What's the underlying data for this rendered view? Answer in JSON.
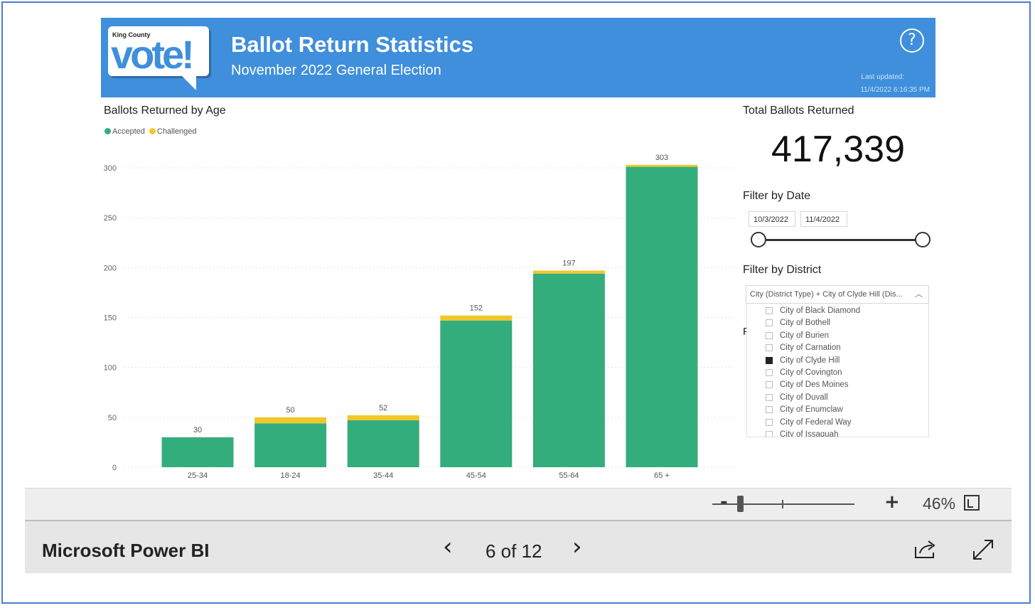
{
  "header": {
    "logo_county": "King County",
    "logo_word": "vote!",
    "title": "Ballot Return Statistics",
    "subtitle": "November 2022 General Election",
    "last_updated_label": "Last updated:",
    "last_updated_value": "11/4/2022 6:16:35 PM",
    "help_icon": "question-circle-icon"
  },
  "chart_data": {
    "type": "bar",
    "stacked": true,
    "title": "Ballots Returned by Age",
    "categories": [
      "25-34",
      "18-24",
      "35-44",
      "45-54",
      "55-64",
      "65 +"
    ],
    "series": [
      {
        "name": "Accepted",
        "color": "#34ad7d",
        "values": [
          30,
          44,
          47,
          147,
          194,
          301
        ]
      },
      {
        "name": "Challenged",
        "color": "#f2c72a",
        "values": [
          0,
          6,
          5,
          5,
          3,
          2
        ]
      }
    ],
    "totals": [
      "30",
      "50",
      "52",
      "152",
      "197",
      "303"
    ],
    "yticks": [
      0,
      50,
      100,
      150,
      200,
      250,
      300
    ],
    "ylim": [
      0,
      320
    ],
    "grid": true,
    "legend_position": "top-left"
  },
  "kpi": {
    "title": "Total Ballots Returned",
    "value": "417,339"
  },
  "date_filter": {
    "title": "Filter by Date",
    "start": "10/3/2022",
    "end": "11/4/2022"
  },
  "district_filter": {
    "title": "Filter by District",
    "dropdown_value": "City (District Type) + City of Clyde Hill (Dis...",
    "items": [
      {
        "label": "City of Black Diamond",
        "checked": false
      },
      {
        "label": "City of Bothell",
        "checked": false
      },
      {
        "label": "City of Burien",
        "checked": false
      },
      {
        "label": "City of Carnation",
        "checked": false
      },
      {
        "label": "City of Clyde Hill",
        "checked": true
      },
      {
        "label": "City of Covington",
        "checked": false
      },
      {
        "label": "City of Des Moines",
        "checked": false
      },
      {
        "label": "City of Duvall",
        "checked": false
      },
      {
        "label": "City of Enumclaw",
        "checked": false
      },
      {
        "label": "City of Federal Way",
        "checked": false
      },
      {
        "label": "City of Issaquah",
        "checked": false
      }
    ],
    "hidden_label": "F"
  },
  "zoom": {
    "minus": "-",
    "plus": "+",
    "value": "46%",
    "level": 0.46
  },
  "footer": {
    "brand": "Microsoft Power BI",
    "page_indicator": "6 of 12",
    "prev_icon": "chevron-left-icon",
    "next_icon": "chevron-right-icon",
    "share_icon": "share-icon",
    "expand_icon": "expand-icon"
  }
}
